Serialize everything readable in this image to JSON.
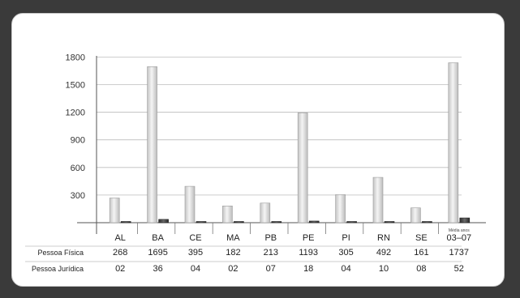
{
  "chart_data": {
    "type": "bar",
    "title": "",
    "xlabel": "",
    "ylabel": "",
    "ylim": [
      0,
      1900
    ],
    "yticks": [
      300,
      600,
      900,
      1200,
      1500,
      1800
    ],
    "grid": true,
    "categories": [
      "AL",
      "BA",
      "CE",
      "MA",
      "PB",
      "PE",
      "PI",
      "RN",
      "SE",
      "03–07"
    ],
    "category_notes": [
      "",
      "",
      "",
      "",
      "",
      "",
      "",
      "",
      "",
      "Média anos"
    ],
    "series": [
      {
        "name": "Pessoa Física",
        "values": [
          268,
          1695,
          395,
          182,
          213,
          1193,
          305,
          492,
          161,
          1737
        ]
      },
      {
        "name": "Pessoa Jurídica",
        "values": [
          2,
          36,
          4,
          2,
          7,
          18,
          4,
          10,
          8,
          52
        ]
      }
    ],
    "table_rows": [
      {
        "label": "Pessoa Física",
        "cells": [
          "268",
          "1695",
          "395",
          "182",
          "213",
          "1193",
          "305",
          "492",
          "161",
          "1737"
        ]
      },
      {
        "label": "Pessoa Jurídica",
        "cells": [
          "02",
          "36",
          "04",
          "02",
          "07",
          "18",
          "04",
          "10",
          "08",
          "52"
        ]
      }
    ],
    "colors": {
      "series_1": "#d9d9d9",
      "series_2": "#4a4a4a",
      "grid": "#bdbdbd"
    }
  }
}
